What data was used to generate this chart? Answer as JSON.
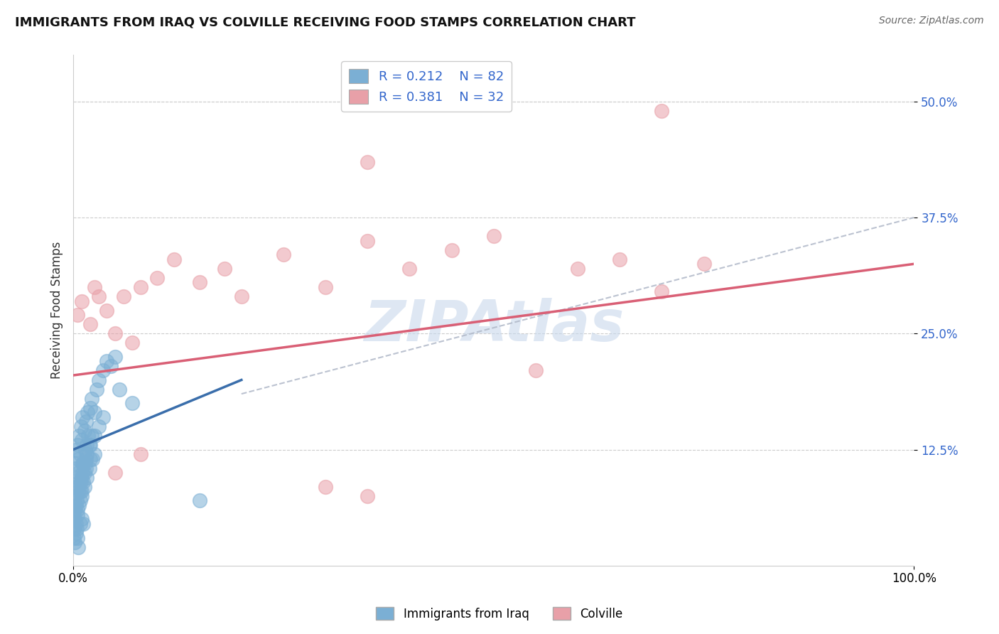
{
  "title": "IMMIGRANTS FROM IRAQ VS COLVILLE RECEIVING FOOD STAMPS CORRELATION CHART",
  "source": "Source: ZipAtlas.com",
  "ylabel": "Receiving Food Stamps",
  "xlim": [
    0.0,
    100.0
  ],
  "ylim": [
    0.0,
    55.0
  ],
  "yticks": [
    12.5,
    25.0,
    37.5,
    50.0
  ],
  "ytick_labels": [
    "12.5%",
    "25.0%",
    "37.5%",
    "50.0%"
  ],
  "legend_R1": "0.212",
  "legend_N1": "82",
  "legend_R2": "0.381",
  "legend_N2": "32",
  "blue_color": "#7bafd4",
  "pink_color": "#e8a0a8",
  "blue_line_color": "#3a6eab",
  "pink_line_color": "#d95f75",
  "dashed_color": "#b0b8c8",
  "watermark": "ZIPAtlas",
  "watermark_color": "#c8d8ec",
  "background_color": "#ffffff",
  "blue_scatter": [
    [
      0.3,
      12.5
    ],
    [
      0.5,
      13.0
    ],
    [
      0.6,
      11.5
    ],
    [
      0.7,
      14.0
    ],
    [
      0.8,
      12.0
    ],
    [
      0.9,
      15.0
    ],
    [
      1.0,
      13.5
    ],
    [
      1.1,
      16.0
    ],
    [
      1.2,
      11.0
    ],
    [
      1.3,
      14.5
    ],
    [
      1.4,
      12.5
    ],
    [
      1.5,
      15.5
    ],
    [
      1.6,
      13.0
    ],
    [
      1.7,
      16.5
    ],
    [
      1.8,
      14.0
    ],
    [
      2.0,
      17.0
    ],
    [
      2.2,
      18.0
    ],
    [
      2.5,
      16.5
    ],
    [
      2.8,
      19.0
    ],
    [
      3.0,
      20.0
    ],
    [
      3.5,
      21.0
    ],
    [
      4.0,
      22.0
    ],
    [
      4.5,
      21.5
    ],
    [
      5.0,
      22.5
    ],
    [
      0.2,
      11.0
    ],
    [
      0.3,
      10.5
    ],
    [
      0.4,
      9.5
    ],
    [
      0.5,
      8.5
    ],
    [
      0.6,
      10.0
    ],
    [
      0.7,
      9.0
    ],
    [
      0.8,
      8.0
    ],
    [
      1.0,
      9.5
    ],
    [
      1.1,
      11.0
    ],
    [
      1.3,
      10.0
    ],
    [
      1.5,
      11.5
    ],
    [
      2.0,
      13.0
    ],
    [
      2.5,
      14.0
    ],
    [
      3.0,
      15.0
    ],
    [
      3.5,
      16.0
    ],
    [
      0.1,
      8.5
    ],
    [
      0.2,
      7.5
    ],
    [
      0.3,
      6.5
    ],
    [
      0.5,
      6.0
    ],
    [
      0.8,
      7.0
    ],
    [
      1.0,
      8.0
    ],
    [
      1.2,
      9.0
    ],
    [
      1.5,
      10.5
    ],
    [
      2.0,
      11.5
    ],
    [
      2.5,
      12.0
    ],
    [
      0.1,
      5.5
    ],
    [
      0.2,
      6.0
    ],
    [
      0.4,
      7.0
    ],
    [
      0.6,
      8.0
    ],
    [
      0.9,
      9.0
    ],
    [
      1.1,
      10.0
    ],
    [
      1.4,
      11.0
    ],
    [
      1.6,
      12.0
    ],
    [
      1.9,
      13.0
    ],
    [
      2.2,
      14.0
    ],
    [
      0.1,
      4.0
    ],
    [
      0.2,
      5.0
    ],
    [
      0.3,
      4.5
    ],
    [
      0.5,
      5.5
    ],
    [
      0.7,
      6.5
    ],
    [
      1.0,
      7.5
    ],
    [
      1.3,
      8.5
    ],
    [
      1.6,
      9.5
    ],
    [
      1.9,
      10.5
    ],
    [
      2.3,
      11.5
    ],
    [
      0.1,
      3.0
    ],
    [
      0.2,
      2.5
    ],
    [
      0.3,
      3.5
    ],
    [
      0.4,
      4.0
    ],
    [
      0.5,
      3.0
    ],
    [
      0.6,
      2.0
    ],
    [
      0.8,
      4.5
    ],
    [
      1.0,
      5.0
    ],
    [
      1.2,
      4.5
    ],
    [
      5.5,
      19.0
    ],
    [
      7.0,
      17.5
    ],
    [
      15.0,
      7.0
    ]
  ],
  "pink_scatter": [
    [
      0.5,
      27.0
    ],
    [
      1.0,
      28.5
    ],
    [
      2.0,
      26.0
    ],
    [
      2.5,
      30.0
    ],
    [
      3.0,
      29.0
    ],
    [
      4.0,
      27.5
    ],
    [
      5.0,
      25.0
    ],
    [
      6.0,
      29.0
    ],
    [
      7.0,
      24.0
    ],
    [
      8.0,
      30.0
    ],
    [
      10.0,
      31.0
    ],
    [
      12.0,
      33.0
    ],
    [
      15.0,
      30.5
    ],
    [
      18.0,
      32.0
    ],
    [
      20.0,
      29.0
    ],
    [
      25.0,
      33.5
    ],
    [
      30.0,
      30.0
    ],
    [
      35.0,
      35.0
    ],
    [
      40.0,
      32.0
    ],
    [
      45.0,
      34.0
    ],
    [
      50.0,
      35.5
    ],
    [
      55.0,
      21.0
    ],
    [
      60.0,
      32.0
    ],
    [
      65.0,
      33.0
    ],
    [
      70.0,
      29.5
    ],
    [
      75.0,
      32.5
    ],
    [
      35.0,
      43.5
    ],
    [
      70.0,
      49.0
    ],
    [
      5.0,
      10.0
    ],
    [
      8.0,
      12.0
    ],
    [
      30.0,
      8.5
    ],
    [
      35.0,
      7.5
    ]
  ],
  "blue_line": [
    [
      0,
      12.5
    ],
    [
      20,
      20.0
    ]
  ],
  "pink_line": [
    [
      0,
      20.5
    ],
    [
      100,
      32.5
    ]
  ],
  "dashed_line": [
    [
      20,
      18.5
    ],
    [
      100,
      37.5
    ]
  ]
}
